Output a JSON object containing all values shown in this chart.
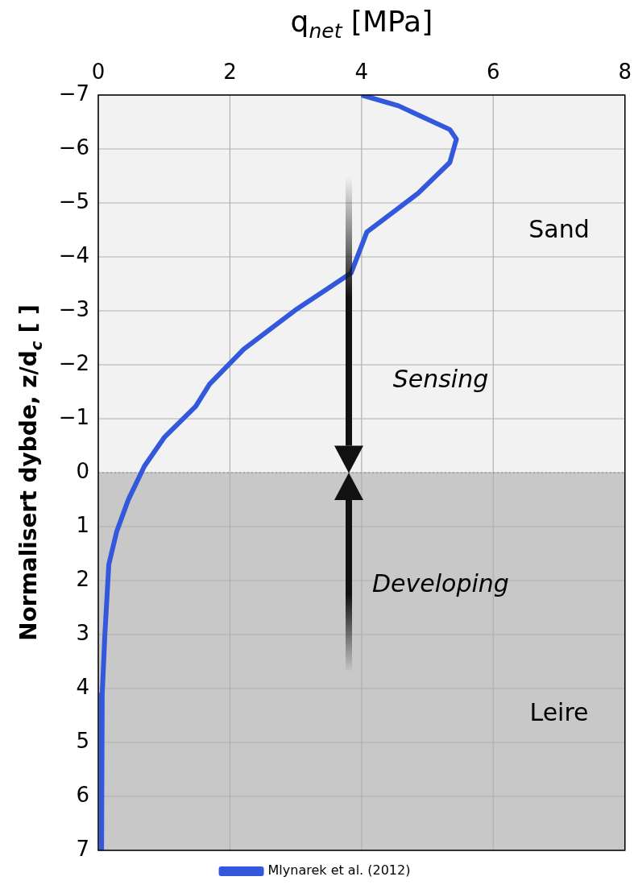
{
  "chart_data": {
    "type": "line",
    "xlabel": "q$_{net}$ [MPa]",
    "ylabel": "Normalisert dybde, z/d$_{c}$ [ ]",
    "xlim": [
      0,
      8
    ],
    "xticks": [
      0,
      2,
      4,
      6,
      8
    ],
    "ylim": [
      7,
      -7
    ],
    "yticks": [
      -7,
      -6,
      -5,
      -4,
      -3,
      -2,
      -1,
      0,
      1,
      2,
      3,
      4,
      5,
      6,
      7
    ],
    "grid": true,
    "legend": "bottom",
    "series": [
      {
        "name": "Mlynarek et al. (2012)",
        "color": "#3358dc",
        "x": [
          4.0,
          4.56,
          5.34,
          5.44,
          5.34,
          4.86,
          4.08,
          3.84,
          3.47,
          2.99,
          2.21,
          1.69,
          1.48,
          1.0,
          0.7,
          0.46,
          0.28,
          0.16,
          0.1,
          0.06,
          0.05
        ],
        "values": [
          -7,
          -6.8,
          -6.36,
          -6.18,
          -5.75,
          -5.18,
          -4.46,
          -3.7,
          -3.4,
          -3.01,
          -2.29,
          -1.64,
          -1.23,
          -0.65,
          -0.12,
          0.49,
          1.09,
          1.7,
          3.0,
          4.1,
          7
        ]
      }
    ],
    "bands": [
      {
        "axis": "y",
        "from": -7,
        "to": 0,
        "label": "Sand",
        "color": "#f2f2f2"
      },
      {
        "axis": "y",
        "from": 0,
        "to": 7,
        "label": "Leire",
        "color": "#c8c8c8"
      }
    ],
    "ref_lines": [
      {
        "axis": "y",
        "value": 0,
        "color": "#888888",
        "line_style": "dotted"
      }
    ],
    "annotations": [
      "Sensing",
      "Developing"
    ]
  }
}
